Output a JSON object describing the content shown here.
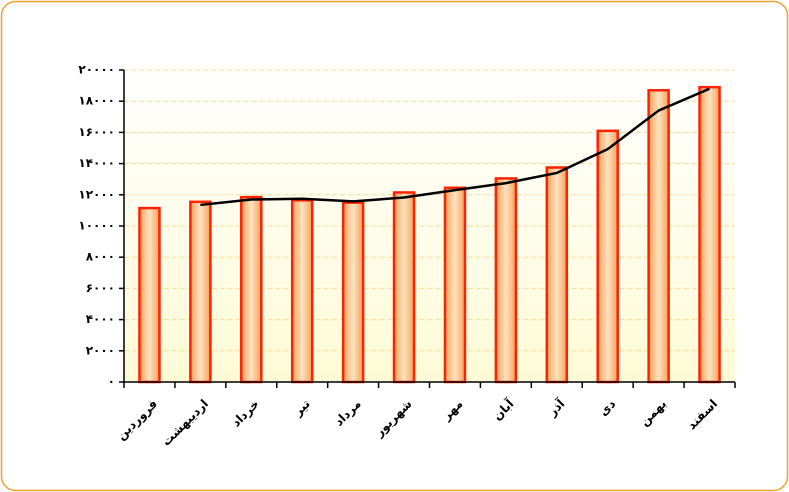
{
  "chart_data": {
    "type": "bar",
    "categories": [
      "فروردین",
      "اردیبهشت",
      "خرداد",
      "تیر",
      "مرداد",
      "شهریور",
      "مهر",
      "آبان",
      "آذر",
      "دی",
      "بهمن",
      "اسفند"
    ],
    "series": [
      {
        "type": "bar",
        "color": "#ff2200",
        "values": [
          11150,
          11550,
          11850,
          11650,
          11500,
          12150,
          12450,
          13050,
          13750,
          16100,
          18700,
          18900
        ]
      },
      {
        "type": "line",
        "color": "#000000",
        "values": [
          null,
          11350,
          11700,
          11750,
          11575,
          11825,
          12300,
          12750,
          13400,
          14925,
          17400,
          18800
        ]
      }
    ],
    "ylim": [
      0,
      20000
    ],
    "yticks": [
      {
        "value": 0,
        "label": "۰"
      },
      {
        "value": 2000,
        "label": "۲۰۰۰"
      },
      {
        "value": 4000,
        "label": "۴۰۰۰"
      },
      {
        "value": 6000,
        "label": "۶۰۰۰"
      },
      {
        "value": 8000,
        "label": "۸۰۰۰"
      },
      {
        "value": 10000,
        "label": "۱۰۰۰۰"
      },
      {
        "value": 12000,
        "label": "۱۲۰۰۰"
      },
      {
        "value": 14000,
        "label": "۱۴۰۰۰"
      },
      {
        "value": 16000,
        "label": "۱۶۰۰۰"
      },
      {
        "value": 18000,
        "label": "۱۸۰۰۰"
      },
      {
        "value": 20000,
        "label": "۲۰۰۰۰"
      }
    ],
    "grid": true
  }
}
